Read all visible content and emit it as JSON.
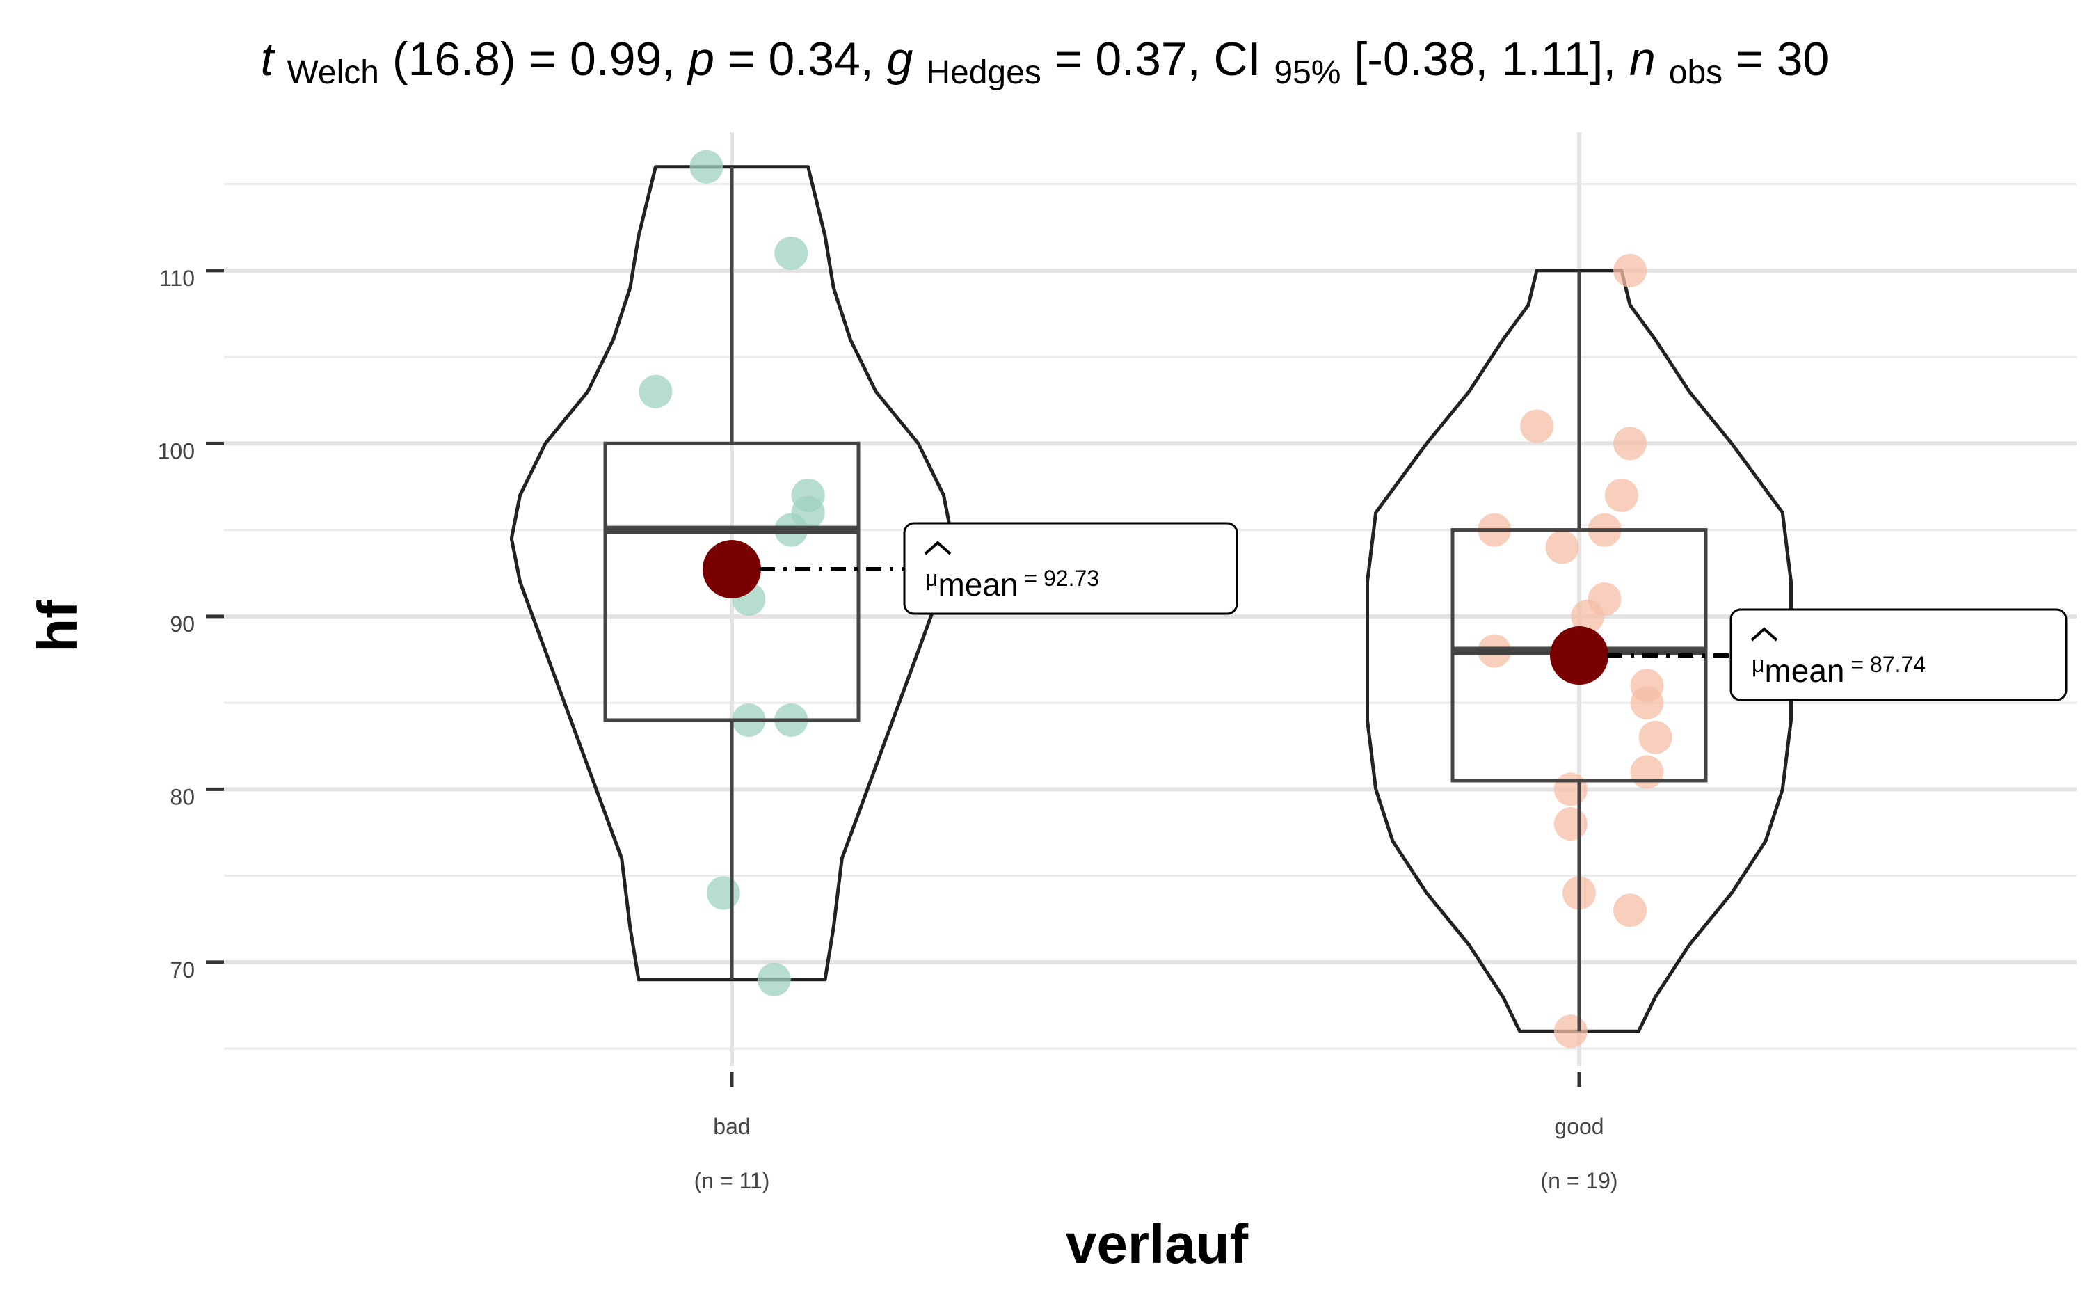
{
  "chart_data": {
    "type": "violin-box",
    "title": {
      "stat_name": "t",
      "stat_sub": "Welch",
      "df": "(16.8) = 0.99, ",
      "p_name": "p",
      "p_value": " = 0.34, ",
      "effect_name": "g",
      "effect_sub": "Hedges",
      "effect_value": " = 0.37, CI",
      "ci_sub": "95%",
      "ci_value": " [-0.38, 1.11], ",
      "n_name": "n",
      "n_sub": "obs",
      "n_value": " = 30"
    },
    "xlabel": "verlauf",
    "ylabel": "hf",
    "ylim": [
      64,
      118
    ],
    "yticks": [
      70,
      80,
      90,
      100,
      110
    ],
    "grid": true,
    "mean_color": "#7a0000",
    "groups": [
      {
        "name": "bad",
        "n_label": "(n = 11)",
        "color": "#9fd1bd",
        "mean": 92.73,
        "mean_label_prefix": "μ",
        "mean_label_sub": "mean",
        "mean_label_value": " = 92.73",
        "box": {
          "min": 69,
          "q1": 84,
          "median": 95,
          "q3": 100,
          "max": 116
        },
        "points": [
          {
            "x": -0.03,
            "y": 116
          },
          {
            "x": 0.07,
            "y": 111
          },
          {
            "x": -0.09,
            "y": 103
          },
          {
            "x": 0.09,
            "y": 97
          },
          {
            "x": 0.09,
            "y": 96
          },
          {
            "x": 0.07,
            "y": 95
          },
          {
            "x": 0.02,
            "y": 91
          },
          {
            "x": 0.02,
            "y": 84
          },
          {
            "x": 0.07,
            "y": 84
          },
          {
            "x": -0.01,
            "y": 74
          },
          {
            "x": 0.05,
            "y": 69
          }
        ],
        "violin_width": [
          {
            "y": 69,
            "w": 0.11
          },
          {
            "y": 72,
            "w": 0.12
          },
          {
            "y": 76,
            "w": 0.13
          },
          {
            "y": 80,
            "w": 0.16
          },
          {
            "y": 84,
            "w": 0.19
          },
          {
            "y": 88,
            "w": 0.22
          },
          {
            "y": 92,
            "w": 0.25
          },
          {
            "y": 94.5,
            "w": 0.26
          },
          {
            "y": 97,
            "w": 0.25
          },
          {
            "y": 100,
            "w": 0.22
          },
          {
            "y": 103,
            "w": 0.17
          },
          {
            "y": 106,
            "w": 0.14
          },
          {
            "y": 109,
            "w": 0.12
          },
          {
            "y": 112,
            "w": 0.11
          },
          {
            "y": 114,
            "w": 0.1
          },
          {
            "y": 116,
            "w": 0.09
          }
        ]
      },
      {
        "name": "good",
        "n_label": "(n = 19)",
        "color": "#f4bfa6",
        "mean": 87.74,
        "mean_label_prefix": "μ",
        "mean_label_sub": "mean",
        "mean_label_value": " = 87.74",
        "box": {
          "min": 66,
          "q1": 80.5,
          "median": 88,
          "q3": 95,
          "max": 110
        },
        "points": [
          {
            "x": 0.06,
            "y": 110
          },
          {
            "x": -0.05,
            "y": 101
          },
          {
            "x": 0.06,
            "y": 100
          },
          {
            "x": 0.05,
            "y": 97
          },
          {
            "x": -0.1,
            "y": 95
          },
          {
            "x": 0.03,
            "y": 95
          },
          {
            "x": -0.02,
            "y": 94
          },
          {
            "x": 0.03,
            "y": 91
          },
          {
            "x": 0.01,
            "y": 90
          },
          {
            "x": -0.1,
            "y": 88
          },
          {
            "x": 0.08,
            "y": 86
          },
          {
            "x": 0.08,
            "y": 85
          },
          {
            "x": 0.09,
            "y": 83
          },
          {
            "x": 0.08,
            "y": 81
          },
          {
            "x": -0.01,
            "y": 80
          },
          {
            "x": -0.01,
            "y": 78
          },
          {
            "x": -0.0,
            "y": 74
          },
          {
            "x": 0.06,
            "y": 73
          },
          {
            "x": -0.01,
            "y": 66
          }
        ],
        "violin_width": [
          {
            "y": 66,
            "w": 0.07
          },
          {
            "y": 68,
            "w": 0.09
          },
          {
            "y": 71,
            "w": 0.13
          },
          {
            "y": 74,
            "w": 0.18
          },
          {
            "y": 77,
            "w": 0.22
          },
          {
            "y": 80,
            "w": 0.24
          },
          {
            "y": 84,
            "w": 0.25
          },
          {
            "y": 88,
            "w": 0.25
          },
          {
            "y": 92,
            "w": 0.25
          },
          {
            "y": 96,
            "w": 0.24
          },
          {
            "y": 100,
            "w": 0.18
          },
          {
            "y": 103,
            "w": 0.13
          },
          {
            "y": 106,
            "w": 0.09
          },
          {
            "y": 108,
            "w": 0.06
          },
          {
            "y": 110,
            "w": 0.05
          }
        ]
      }
    ]
  }
}
